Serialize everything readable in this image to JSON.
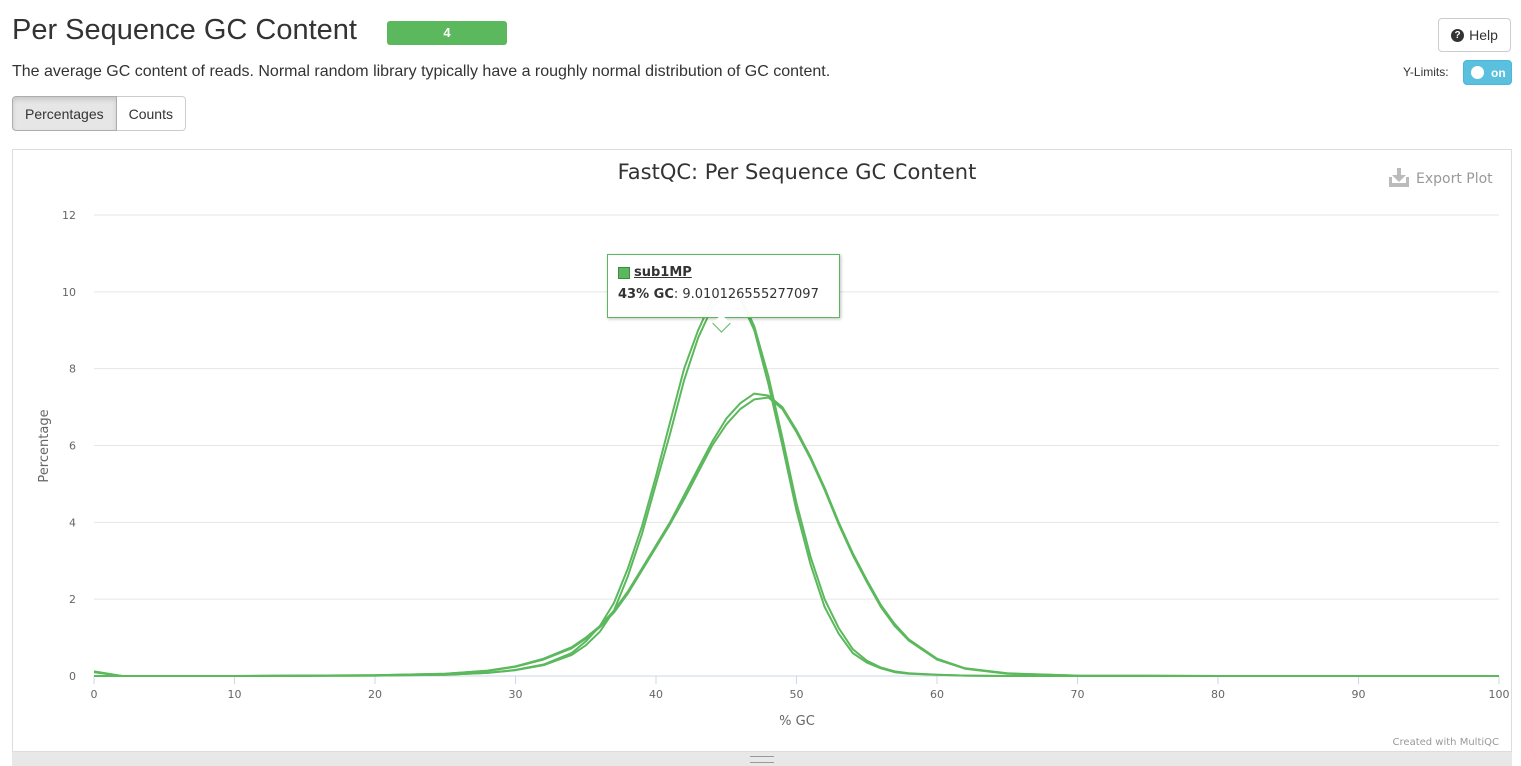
{
  "header": {
    "title": "Per Sequence GC Content",
    "badge": "4",
    "help_label": "Help",
    "description": "The average GC content of reads. Normal random library typically have a roughly normal distribution of GC content.",
    "ylimits_label": "Y-Limits:",
    "ylimits_state": "on"
  },
  "tabs": [
    {
      "label": "Percentages",
      "active": true
    },
    {
      "label": "Counts",
      "active": false
    }
  ],
  "plot": {
    "export_label": "Export Plot",
    "credit": "Created with MultiQC"
  },
  "tooltip": {
    "sample": "sub1MP",
    "x_label": "43% GC",
    "value": "9.010126555277097"
  },
  "colors": {
    "series": "#5cb85c",
    "badge": "#5cb85c",
    "toggle": "#5bc0de"
  },
  "chart_data": {
    "type": "line",
    "title": "FastQC: Per Sequence GC Content",
    "xlabel": "% GC",
    "ylabel": "Percentage",
    "xlim": [
      0,
      100
    ],
    "ylim": [
      0,
      12
    ],
    "x_ticks": [
      0,
      10,
      20,
      30,
      40,
      50,
      60,
      70,
      80,
      90,
      100
    ],
    "y_ticks": [
      0,
      2,
      4,
      6,
      8,
      10,
      12
    ],
    "grid": true,
    "legend": "none",
    "x": [
      0,
      2,
      10,
      20,
      25,
      28,
      30,
      32,
      34,
      35,
      36,
      37,
      38,
      39,
      40,
      41,
      42,
      43,
      44,
      45,
      46,
      47,
      48,
      49,
      50,
      51,
      52,
      53,
      54,
      55,
      56,
      57,
      58,
      60,
      62,
      65,
      70,
      80,
      90,
      100
    ],
    "series": [
      {
        "values": [
          0.12,
          0.0,
          0.0,
          0.01,
          0.03,
          0.08,
          0.16,
          0.3,
          0.6,
          0.9,
          1.3,
          1.9,
          2.8,
          3.9,
          5.2,
          6.6,
          8.0,
          9.0,
          9.8,
          10.1,
          9.9,
          9.1,
          7.8,
          6.2,
          4.5,
          3.1,
          2.0,
          1.25,
          0.7,
          0.4,
          0.22,
          0.12,
          0.07,
          0.03,
          0.01,
          0.0,
          0.0,
          0.0,
          0.0,
          0.0
        ]
      },
      {
        "values": [
          0.1,
          0.0,
          0.0,
          0.01,
          0.03,
          0.08,
          0.15,
          0.28,
          0.55,
          0.8,
          1.15,
          1.7,
          2.6,
          3.7,
          5.0,
          6.3,
          7.7,
          8.8,
          9.6,
          9.95,
          9.8,
          9.0,
          7.6,
          6.0,
          4.3,
          2.9,
          1.8,
          1.1,
          0.6,
          0.35,
          0.2,
          0.1,
          0.06,
          0.03,
          0.01,
          0.0,
          0.0,
          0.0,
          0.0,
          0.0
        ]
      },
      {
        "values": [
          0.0,
          0.0,
          0.0,
          0.02,
          0.06,
          0.14,
          0.25,
          0.45,
          0.75,
          1.0,
          1.3,
          1.7,
          2.2,
          2.8,
          3.4,
          4.0,
          4.7,
          5.4,
          6.1,
          6.7,
          7.1,
          7.35,
          7.3,
          7.0,
          6.4,
          5.7,
          4.9,
          4.0,
          3.2,
          2.5,
          1.85,
          1.35,
          0.95,
          0.45,
          0.2,
          0.07,
          0.01,
          0.0,
          0.0,
          0.0
        ]
      },
      {
        "values": [
          0.0,
          0.0,
          0.0,
          0.02,
          0.06,
          0.13,
          0.24,
          0.43,
          0.72,
          0.97,
          1.27,
          1.65,
          2.15,
          2.75,
          3.35,
          3.95,
          4.6,
          5.3,
          6.0,
          6.55,
          6.95,
          7.2,
          7.25,
          6.95,
          6.35,
          5.65,
          4.85,
          3.95,
          3.15,
          2.45,
          1.8,
          1.3,
          0.92,
          0.43,
          0.19,
          0.06,
          0.01,
          0.0,
          0.0,
          0.0
        ]
      }
    ]
  }
}
